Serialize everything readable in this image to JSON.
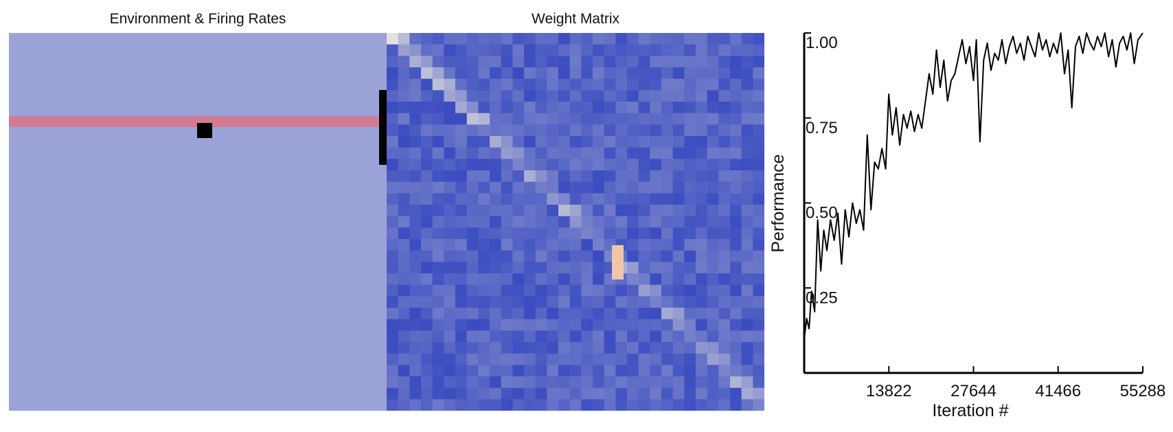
{
  "panels": {
    "environment": {
      "title": "Environment & Firing Rates"
    },
    "weight_matrix": {
      "title": "Weight Matrix"
    }
  },
  "colors": {
    "env_background": "#9aa2d8",
    "firing_rate_band": "#d37a93",
    "agent": "#000000",
    "matrix_low": "#3a4cc0",
    "matrix_high": "#dddcdc",
    "matrix_peak": "#f2c4a8",
    "line": "#000000"
  },
  "chart_data": {
    "type": "line",
    "title": "",
    "xlabel": "Iteration #",
    "ylabel": "Performance",
    "xlim": [
      0,
      55288
    ],
    "ylim": [
      0,
      1.0
    ],
    "xticks": [
      13822,
      27644,
      41466,
      55288
    ],
    "xtick_labels": [
      "13822",
      "27644",
      "41466",
      "55288"
    ],
    "yticks": [
      0.25,
      0.5,
      0.75,
      1.0
    ],
    "ytick_labels": [
      "0.25",
      "0.50",
      "0.75",
      "1.00"
    ],
    "grid": false,
    "series": [
      {
        "x": [
          0,
          400,
          800,
          1200,
          1700,
          2200,
          2700,
          3200,
          3700,
          4300,
          4900,
          5500,
          6100,
          6700,
          7300,
          7900,
          8500,
          9100,
          9700,
          10300,
          10900,
          11500,
          12100,
          12700,
          13300,
          13800,
          14400,
          15000,
          15600,
          16200,
          16800,
          17400,
          18000,
          18600,
          19200,
          19800,
          20400,
          21000,
          21600,
          22200,
          22800,
          23400,
          24000,
          24600,
          25200,
          25800,
          26400,
          27000,
          27644,
          28100,
          28700,
          29300,
          29900,
          30500,
          31100,
          31700,
          32300,
          32900,
          33500,
          34100,
          34700,
          35300,
          35900,
          36500,
          37100,
          37700,
          38300,
          38900,
          39500,
          40100,
          40700,
          41300,
          41900,
          42500,
          43100,
          43700,
          44300,
          44900,
          45500,
          46100,
          46700,
          47300,
          47900,
          48500,
          49100,
          49700,
          50300,
          50900,
          51500,
          52100,
          52700,
          53300,
          53900,
          54500,
          55288
        ],
        "values": [
          0.1,
          0.16,
          0.13,
          0.24,
          0.18,
          0.45,
          0.3,
          0.42,
          0.36,
          0.45,
          0.39,
          0.47,
          0.32,
          0.48,
          0.4,
          0.5,
          0.44,
          0.48,
          0.42,
          0.7,
          0.48,
          0.62,
          0.6,
          0.66,
          0.6,
          0.82,
          0.7,
          0.78,
          0.67,
          0.76,
          0.72,
          0.77,
          0.71,
          0.76,
          0.72,
          0.8,
          0.88,
          0.82,
          0.95,
          0.84,
          0.92,
          0.8,
          0.86,
          0.88,
          0.93,
          0.98,
          0.91,
          0.96,
          0.86,
          0.98,
          0.68,
          0.92,
          0.97,
          0.89,
          0.94,
          0.92,
          0.98,
          0.91,
          0.96,
          0.99,
          0.94,
          0.97,
          0.92,
          0.99,
          0.96,
          0.93,
          1.0,
          0.95,
          0.98,
          0.93,
          0.97,
          0.94,
          1.0,
          0.88,
          0.95,
          0.78,
          0.96,
          0.99,
          0.94,
          1.0,
          0.97,
          0.95,
          0.99,
          0.96,
          1.0,
          0.93,
          0.98,
          0.9,
          0.97,
          0.99,
          0.95,
          1.0,
          0.91,
          0.98,
          1.0
        ]
      }
    ]
  }
}
